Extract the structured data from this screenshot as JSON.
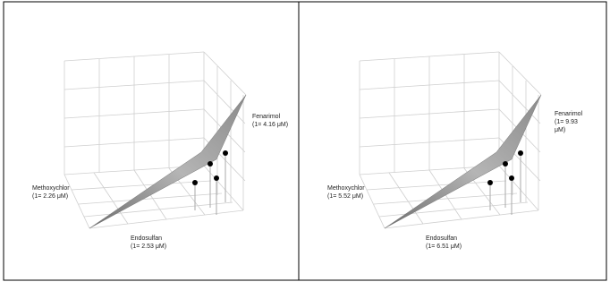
{
  "panels": [
    {
      "labels": [
        {
          "lines": [
            "Methoxychlor",
            "(1= 2.26 μM)"
          ]
        },
        {
          "lines": [
            "Endosulfan",
            "(1= 2.53 μM)"
          ]
        },
        {
          "lines": [
            "Fenarimol",
            "(1= 4.16 μM)"
          ]
        }
      ]
    },
    {
      "labels": [
        {
          "lines": [
            "Methoxychlor",
            "(1= 5.52 μM)"
          ]
        },
        {
          "lines": [
            "Endosulfan",
            "(1= 6.51 μM)"
          ]
        },
        {
          "lines": [
            "Fenarimol",
            "(1= 9.93",
            "μM)"
          ]
        }
      ]
    }
  ]
}
